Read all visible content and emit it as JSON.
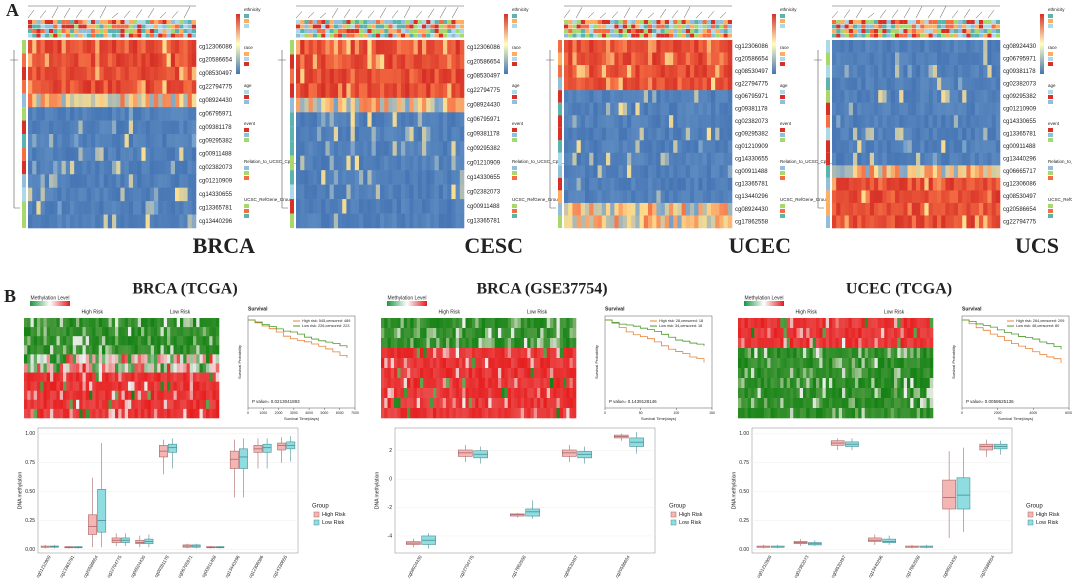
{
  "panel_a": {
    "label": "A",
    "annotation_titles": [
      "ethnicity",
      "race",
      "age",
      "event",
      "Relation_to_UCSC_CpG_Island",
      "UCSC_RefGene_Group"
    ],
    "heatmaps": [
      {
        "name": "BRCA",
        "probes": [
          "cg12306086",
          "cg20586654",
          "cg08530497",
          "cg22794775",
          "cg08924430",
          "cg06795971",
          "cg09381178",
          "cg09295382",
          "cg00911488",
          "cg02382073",
          "cg01210909",
          "cg14330655",
          "cg13365781",
          "cg13440296"
        ]
      },
      {
        "name": "CESC",
        "probes": [
          "cg12306086",
          "cg20586654",
          "cg08530497",
          "cg22794775",
          "cg08924430",
          "cg06795971",
          "cg09381178",
          "cg09295382",
          "cg01210909",
          "cg14330655",
          "cg02382073",
          "cg00911488",
          "cg13365781"
        ]
      },
      {
        "name": "UCEC",
        "probes": [
          "cg12306086",
          "cg20586654",
          "cg08530497",
          "cg22794775",
          "cg06795971",
          "cg09381178",
          "cg02382073",
          "cg09295382",
          "cg01210909",
          "cg14330655",
          "cg00911488",
          "cg13365781",
          "cg13440296",
          "cg08924430",
          "cg17862558"
        ]
      },
      {
        "name": "UCS",
        "probes": [
          "cg08924430",
          "cg06795971",
          "cg09381178",
          "cg02382073",
          "cg09295382",
          "cg01210909",
          "cg14330655",
          "cg13365781",
          "cg00911488",
          "cg13440296",
          "cg06665717",
          "cg12306086",
          "cg08530497",
          "cg20586654",
          "cg22794775"
        ]
      }
    ]
  },
  "panel_b": {
    "label": "B",
    "columns": [
      {
        "title": "BRCA (TCGA)",
        "heatmap_legend": "Methylation Level",
        "high": "High Risk",
        "low": "Low Risk",
        "survival": {
          "title": "Survival",
          "high_label": "High risk: 545,censored: 489",
          "low_label": "Low risk: 226,censored: 223",
          "p_value": "P value= 0.0213041893",
          "xlabel": "Survival Time(days)",
          "ylabel": "Survival Probability",
          "xticks": [
            0,
            1000,
            2000,
            3000,
            4000,
            5000,
            6000,
            7000
          ]
        },
        "boxplot": {
          "ylabel": "DNA methylation",
          "ylim": [
            -0.03,
            1.05
          ],
          "yticks": [
            {
              "value": 0,
              "label": "0.00"
            },
            {
              "value": 0.25,
              "label": "0.25"
            },
            {
              "value": 0.5,
              "label": "0.50"
            },
            {
              "value": 0.75,
              "label": "0.75"
            },
            {
              "value": 1,
              "label": "1.00"
            }
          ],
          "probes": [
            "cg01210909",
            "cg13365781",
            "cg20586654",
            "cg22794775",
            "cg08924430",
            "cg09381178",
            "cg06795971",
            "cg00911488",
            "cg13440296",
            "cg12306086",
            "cg14330655"
          ],
          "high": [
            [
              0.01,
              0.02,
              0.02,
              0.03,
              0.04
            ],
            [
              0.01,
              0.015,
              0.02,
              0.025,
              0.03
            ],
            [
              0.02,
              0.13,
              0.2,
              0.3,
              0.62
            ],
            [
              0.03,
              0.06,
              0.08,
              0.1,
              0.14
            ],
            [
              0.02,
              0.05,
              0.06,
              0.08,
              0.12
            ],
            [
              0.65,
              0.8,
              0.85,
              0.9,
              0.95
            ],
            [
              0.01,
              0.02,
              0.03,
              0.04,
              0.05
            ],
            [
              0.01,
              0.015,
              0.02,
              0.025,
              0.03
            ],
            [
              0.45,
              0.7,
              0.78,
              0.85,
              0.95
            ],
            [
              0.7,
              0.84,
              0.87,
              0.9,
              0.96
            ],
            [
              0.75,
              0.86,
              0.9,
              0.92,
              0.97
            ]
          ],
          "low": [
            [
              0.01,
              0.02,
              0.025,
              0.03,
              0.04
            ],
            [
              0.01,
              0.015,
              0.02,
              0.025,
              0.03
            ],
            [
              0.02,
              0.15,
              0.25,
              0.52,
              0.92
            ],
            [
              0.03,
              0.06,
              0.08,
              0.1,
              0.14
            ],
            [
              0.02,
              0.05,
              0.07,
              0.09,
              0.13
            ],
            [
              0.7,
              0.84,
              0.88,
              0.91,
              0.96
            ],
            [
              0.01,
              0.02,
              0.03,
              0.04,
              0.05
            ],
            [
              0.01,
              0.015,
              0.02,
              0.025,
              0.03
            ],
            [
              0.45,
              0.7,
              0.8,
              0.87,
              0.96
            ],
            [
              0.7,
              0.84,
              0.88,
              0.91,
              0.96
            ],
            [
              0.76,
              0.87,
              0.9,
              0.93,
              0.98
            ]
          ],
          "legend_title": "Group",
          "legend": [
            "High Risk",
            "Low Risk"
          ]
        }
      },
      {
        "title": "BRCA (GSE37754)",
        "heatmap_legend": "Methylation Level",
        "high": "High Risk",
        "low": "Low Risk",
        "survival": {
          "title": "Survival",
          "high_label": "High risk: 28,censored: 18",
          "low_label": "Low risk: 34,censored: 16",
          "p_value": "P value= 0.1439128146",
          "xlabel": "Survival Time(days)",
          "ylabel": "Survival Probability",
          "xticks": [
            0,
            50,
            100,
            150
          ]
        },
        "boxplot": {
          "ylabel": "DNA methylation",
          "ylim": [
            -5.2,
            3.6
          ],
          "yticks": [
            -4,
            -2,
            0,
            2
          ],
          "probes": [
            "cg08924430",
            "cg22794775",
            "cg17862558",
            "cg08530497",
            "cg20586654"
          ],
          "high": [
            [
              -4.8,
              -4.6,
              -4.5,
              -4.4,
              -4.2
            ],
            [
              1.2,
              1.6,
              1.85,
              2.05,
              2.4
            ],
            [
              -2.7,
              -2.6,
              -2.5,
              -2.45,
              -2.4
            ],
            [
              1.2,
              1.6,
              1.85,
              2.05,
              2.4
            ],
            [
              2.7,
              2.9,
              3.0,
              3.1,
              3.2
            ]
          ],
          "low": [
            [
              -4.9,
              -4.6,
              -4.3,
              -4.0,
              -3.8
            ],
            [
              1.1,
              1.5,
              1.75,
              2.0,
              2.3
            ],
            [
              -2.8,
              -2.6,
              -2.3,
              -2.1,
              -1.5
            ],
            [
              1.1,
              1.5,
              1.75,
              1.95,
              2.3
            ],
            [
              1.8,
              2.3,
              2.6,
              2.9,
              3.3
            ]
          ],
          "legend_title": "Group",
          "legend": [
            "High Risk",
            "Low Risk"
          ]
        }
      },
      {
        "title": "UCEC (TCGA)",
        "heatmap_legend": "Methylation Level",
        "high": "High Risk",
        "low": "Low Risk",
        "survival": {
          "title": "Survival",
          "high_label": "High risk: 264,censored: 209",
          "low_label": "Low risk: 48,censored: 80",
          "p_value": "P value= 0.0058625136",
          "xlabel": "Survival Time(days)",
          "ylabel": "Survival Probability",
          "xticks": [
            0,
            2000,
            4000,
            6000
          ]
        },
        "boxplot": {
          "ylabel": "DNA methylation",
          "ylim": [
            -0.03,
            1.05
          ],
          "yticks": [
            {
              "value": 0,
              "label": "0.00"
            },
            {
              "value": 0.25,
              "label": "0.25"
            },
            {
              "value": 0.5,
              "label": "0.50"
            },
            {
              "value": 0.75,
              "label": "0.75"
            },
            {
              "value": 1,
              "label": "1.00"
            }
          ],
          "probes": [
            "cg01210909",
            "cg02382073",
            "cg08530497",
            "cg13440296",
            "cg17862558",
            "cg08924430",
            "cg20586654"
          ],
          "high": [
            [
              0.01,
              0.02,
              0.02,
              0.03,
              0.04
            ],
            [
              0.03,
              0.05,
              0.06,
              0.07,
              0.09
            ],
            [
              0.86,
              0.9,
              0.92,
              0.94,
              0.96
            ],
            [
              0.04,
              0.07,
              0.08,
              0.1,
              0.13
            ],
            [
              0.01,
              0.02,
              0.02,
              0.03,
              0.04
            ],
            [
              0.1,
              0.35,
              0.45,
              0.6,
              0.85
            ],
            [
              0.8,
              0.86,
              0.89,
              0.91,
              0.95
            ]
          ],
          "low": [
            [
              0.01,
              0.02,
              0.02,
              0.03,
              0.04
            ],
            [
              0.03,
              0.04,
              0.05,
              0.06,
              0.08
            ],
            [
              0.86,
              0.89,
              0.91,
              0.93,
              0.96
            ],
            [
              0.04,
              0.06,
              0.07,
              0.09,
              0.12
            ],
            [
              0.01,
              0.02,
              0.02,
              0.03,
              0.04
            ],
            [
              0.15,
              0.35,
              0.47,
              0.62,
              0.88
            ],
            [
              0.82,
              0.87,
              0.89,
              0.91,
              0.94
            ]
          ],
          "legend_title": "Group",
          "legend": [
            "High Risk",
            "Low Risk"
          ]
        }
      }
    ]
  }
}
